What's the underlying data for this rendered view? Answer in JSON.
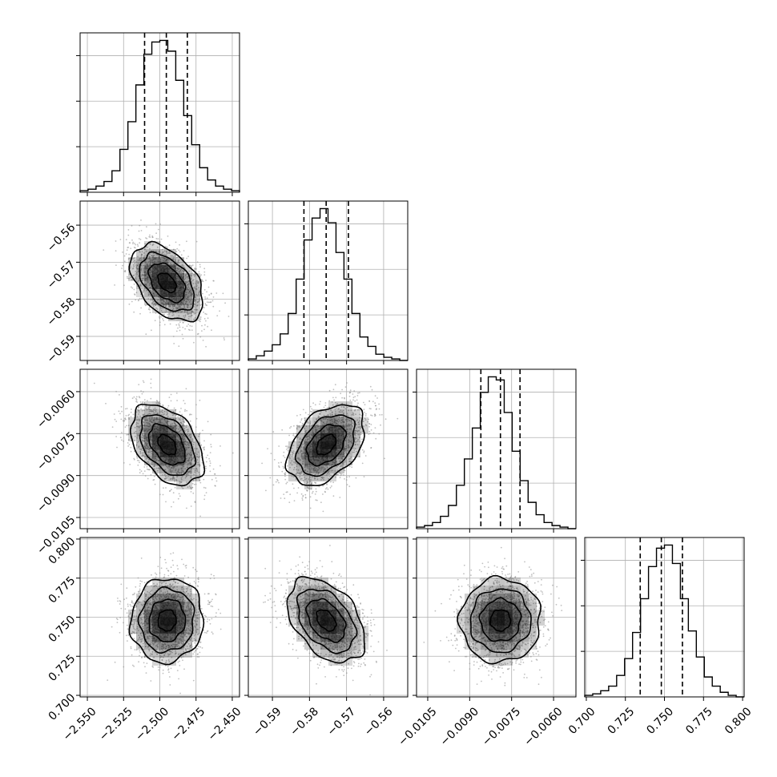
{
  "chart_data": {
    "type": "corner",
    "params": [
      {
        "range": [
          -2.555,
          -2.445
        ],
        "ticks": [
          -2.55,
          -2.525,
          -2.5,
          -2.475,
          -2.45
        ],
        "tick_labels": [
          "−2.550",
          "−2.525",
          "−2.500",
          "−2.475",
          "−2.450"
        ],
        "mean": -2.495,
        "sd": 0.0125,
        "quantiles": [
          -2.5105,
          -2.4955,
          -2.481
        ],
        "hist_values": [
          0.01,
          0.02,
          0.04,
          0.07,
          0.14,
          0.28,
          0.46,
          0.7,
          0.9,
          0.98,
          0.99,
          0.92,
          0.73,
          0.5,
          0.31,
          0.16,
          0.08,
          0.04,
          0.02,
          0.01
        ]
      },
      {
        "range": [
          -0.5965,
          -0.5535
        ],
        "ticks": [
          -0.59,
          -0.58,
          -0.57,
          -0.56
        ],
        "tick_labels": [
          "−0.59",
          "−0.58",
          "−0.57",
          "−0.56"
        ],
        "mean": -0.5755,
        "sd": 0.0052,
        "quantiles": [
          -0.5815,
          -0.5755,
          -0.5695
        ],
        "hist_values": [
          0.01,
          0.03,
          0.06,
          0.1,
          0.17,
          0.3,
          0.52,
          0.77,
          0.91,
          0.97,
          0.88,
          0.69,
          0.52,
          0.3,
          0.15,
          0.09,
          0.04,
          0.02,
          0.01,
          0.0
        ]
      },
      {
        "range": [
          -0.0109,
          -0.0052
        ],
        "ticks": [
          -0.0105,
          -0.009,
          -0.0075,
          -0.006
        ],
        "tick_labels": [
          "−0.0105",
          "−0.0090",
          "−0.0075",
          "−0.0060"
        ],
        "mean": -0.0079,
        "sd": 0.00072,
        "quantiles": [
          -0.0086,
          -0.0079,
          -0.0072
        ],
        "hist_values": [
          0.01,
          0.02,
          0.04,
          0.08,
          0.15,
          0.28,
          0.45,
          0.65,
          0.88,
          0.98,
          0.96,
          0.75,
          0.5,
          0.31,
          0.17,
          0.09,
          0.04,
          0.02,
          0.01,
          0.0
        ]
      },
      {
        "range": [
          0.699,
          0.801
        ],
        "ticks": [
          0.7,
          0.725,
          0.75,
          0.775,
          0.8
        ],
        "tick_labels": [
          "0.700",
          "0.725",
          "0.750",
          "0.775",
          "0.800"
        ],
        "mean": 0.748,
        "sd": 0.0135,
        "quantiles": [
          0.7345,
          0.748,
          0.7615
        ],
        "hist_values": [
          0.01,
          0.02,
          0.04,
          0.07,
          0.14,
          0.25,
          0.42,
          0.64,
          0.85,
          0.97,
          0.99,
          0.87,
          0.64,
          0.43,
          0.26,
          0.13,
          0.07,
          0.03,
          0.01,
          0.0
        ]
      }
    ],
    "correlations": [
      [
        1,
        -0.45,
        -0.42,
        0.05
      ],
      [
        -0.45,
        1,
        0.42,
        -0.42
      ],
      [
        -0.42,
        0.42,
        1,
        0.02
      ],
      [
        0.05,
        -0.42,
        0.02,
        1
      ]
    ],
    "contour_levels_sigma": [
      0.5,
      1.0,
      1.5,
      2.0
    ],
    "quantile_lines": [
      0.16,
      0.5,
      0.84
    ],
    "grid": true,
    "title": "",
    "xlabel": "",
    "ylabel": ""
  }
}
